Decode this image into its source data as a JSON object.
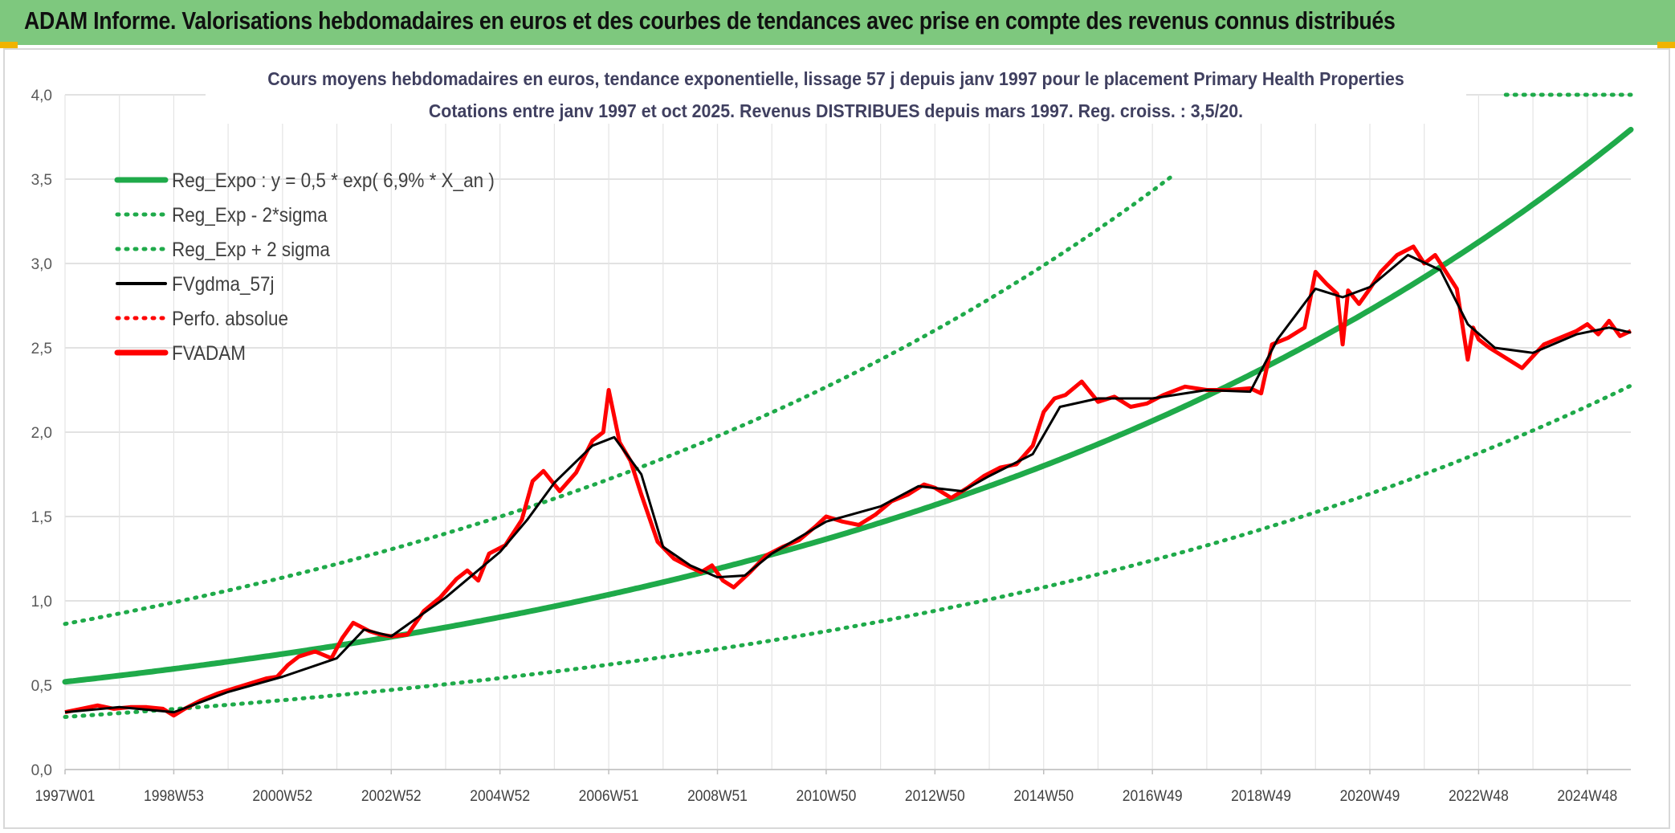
{
  "banner": {
    "title": "ADAM Informe. Valorisations hebdomadaires en euros et des courbes de tendances avec prise en compte des revenus connus distribués"
  },
  "colors": {
    "banner_bg": "#7ec87e",
    "corner_accent": "#f0b400",
    "reg_expo": "#1faa4a",
    "fvgdma": "#000000",
    "fvadam": "#ff0000",
    "perfo": "#ff0000"
  },
  "chart_data": {
    "type": "line",
    "title": "Cours moyens hebdomadaires en euros, tendance exponentielle, lissage 57 j depuis janv 1997 pour le placement Primary Health Properties",
    "subtitle": "Cotations entre janv 1997 et oct 2025. Revenus DISTRIBUES depuis mars 1997. Reg. croiss. : 3,5/20.",
    "xlabel": "",
    "ylabel": "",
    "ylim": [
      0,
      4
    ],
    "xlim": [
      1997.0,
      2025.8
    ],
    "grid": true,
    "legend_position": "top-left",
    "y_ticks": [
      "0,0",
      "0,5",
      "1,0",
      "1,5",
      "2,0",
      "2,5",
      "3,0",
      "3,5",
      "4,0"
    ],
    "x_ticks": [
      {
        "label": "1997W01",
        "x": 1997.0
      },
      {
        "label": "1998W53",
        "x": 1999.0
      },
      {
        "label": "2000W52",
        "x": 2001.0
      },
      {
        "label": "2002W52",
        "x": 2003.0
      },
      {
        "label": "2004W52",
        "x": 2005.0
      },
      {
        "label": "2006W51",
        "x": 2007.0
      },
      {
        "label": "2008W51",
        "x": 2009.0
      },
      {
        "label": "2010W50",
        "x": 2011.0
      },
      {
        "label": "2012W50",
        "x": 2013.0
      },
      {
        "label": "2014W50",
        "x": 2015.0
      },
      {
        "label": "2016W49",
        "x": 2017.0
      },
      {
        "label": "2018W49",
        "x": 2019.0
      },
      {
        "label": "2020W49",
        "x": 2021.0
      },
      {
        "label": "2022W48",
        "x": 2023.0
      },
      {
        "label": "2024W48",
        "x": 2025.0
      }
    ],
    "legend": [
      {
        "label": "Reg_Expo : y = 0,5 * exp( 6,9% *  X_an )",
        "style": "solid-thick",
        "color": "#1faa4a"
      },
      {
        "label": "Reg_Exp - 2*sigma",
        "style": "dotted",
        "color": "#1faa4a"
      },
      {
        "label": "Reg_Exp + 2 sigma",
        "style": "dotted",
        "color": "#1faa4a"
      },
      {
        "label": "FVgdma_57j",
        "style": "solid",
        "color": "#000000"
      },
      {
        "label": "Perfo. absolue",
        "style": "dotted",
        "color": "#ff0000"
      },
      {
        "label": "FVADAM",
        "style": "solid-thick",
        "color": "#ff0000"
      }
    ],
    "trend": {
      "reg_expo": {
        "a": 0.52,
        "rate": 0.069
      },
      "lower_band_factor": 0.6,
      "upper_band_factor": 1.66
    },
    "series": [
      {
        "name": "FVADAM",
        "x": [
          1997.0,
          1997.3,
          1997.6,
          1997.9,
          1998.2,
          1998.5,
          1998.8,
          1999.0,
          1999.2,
          1999.5,
          1999.8,
          2000.1,
          2000.4,
          2000.7,
          2000.9,
          2001.1,
          2001.3,
          2001.6,
          2001.9,
          2002.1,
          2002.3,
          2002.6,
          2002.8,
          2003.0,
          2003.3,
          2003.6,
          2003.9,
          2004.2,
          2004.4,
          2004.6,
          2004.8,
          2005.1,
          2005.4,
          2005.6,
          2005.8,
          2006.1,
          2006.4,
          2006.7,
          2006.9,
          2007.0,
          2007.2,
          2007.4,
          2007.6,
          2007.9,
          2008.2,
          2008.5,
          2008.7,
          2008.9,
          2009.1,
          2009.3,
          2009.6,
          2009.9,
          2010.2,
          2010.5,
          2010.8,
          2011.0,
          2011.3,
          2011.6,
          2011.9,
          2012.2,
          2012.5,
          2012.8,
          2013.0,
          2013.3,
          2013.6,
          2013.9,
          2014.2,
          2014.5,
          2014.8,
          2015.0,
          2015.2,
          2015.4,
          2015.7,
          2016.0,
          2016.3,
          2016.6,
          2016.9,
          2017.2,
          2017.6,
          2018.0,
          2018.4,
          2018.8,
          2019.0,
          2019.2,
          2019.5,
          2019.8,
          2020.0,
          2020.2,
          2020.4,
          2020.5,
          2020.6,
          2020.8,
          2021.0,
          2021.2,
          2021.5,
          2021.8,
          2022.0,
          2022.2,
          2022.4,
          2022.6,
          2022.8,
          2022.9,
          2023.0,
          2023.2,
          2023.5,
          2023.8,
          2024.0,
          2024.2,
          2024.5,
          2024.8,
          2025.0,
          2025.2,
          2025.4,
          2025.6,
          2025.8
        ],
        "values": [
          0.34,
          0.36,
          0.38,
          0.36,
          0.37,
          0.37,
          0.36,
          0.32,
          0.36,
          0.41,
          0.45,
          0.48,
          0.51,
          0.54,
          0.55,
          0.62,
          0.67,
          0.7,
          0.66,
          0.78,
          0.87,
          0.82,
          0.8,
          0.79,
          0.8,
          0.94,
          1.02,
          1.13,
          1.18,
          1.12,
          1.28,
          1.33,
          1.48,
          1.71,
          1.77,
          1.65,
          1.76,
          1.95,
          2.0,
          2.25,
          1.94,
          1.83,
          1.63,
          1.35,
          1.25,
          1.2,
          1.17,
          1.21,
          1.12,
          1.08,
          1.17,
          1.27,
          1.32,
          1.36,
          1.44,
          1.5,
          1.47,
          1.45,
          1.51,
          1.59,
          1.63,
          1.69,
          1.67,
          1.61,
          1.67,
          1.74,
          1.79,
          1.81,
          1.92,
          2.12,
          2.2,
          2.22,
          2.3,
          2.18,
          2.21,
          2.15,
          2.17,
          2.22,
          2.27,
          2.25,
          2.25,
          2.26,
          2.23,
          2.52,
          2.56,
          2.62,
          2.95,
          2.88,
          2.82,
          2.52,
          2.84,
          2.76,
          2.85,
          2.95,
          3.05,
          3.1,
          3.0,
          3.05,
          2.95,
          2.85,
          2.43,
          2.62,
          2.55,
          2.5,
          2.44,
          2.38,
          2.45,
          2.52,
          2.56,
          2.6,
          2.64,
          2.58,
          2.66,
          2.57,
          2.6
        ]
      },
      {
        "name": "FVgdma_57j",
        "x": [
          1997.0,
          1998.0,
          1999.0,
          2000.0,
          2001.0,
          2002.0,
          2002.5,
          2003.0,
          2004.0,
          2005.0,
          2005.5,
          2006.0,
          2006.7,
          2007.1,
          2007.6,
          2008.0,
          2008.5,
          2009.0,
          2009.5,
          2010.0,
          2011.0,
          2012.0,
          2012.7,
          2013.5,
          2014.0,
          2014.8,
          2015.3,
          2016.0,
          2017.0,
          2018.0,
          2018.8,
          2019.3,
          2020.0,
          2020.5,
          2021.0,
          2021.7,
          2022.3,
          2022.8,
          2023.3,
          2024.0,
          2024.8,
          2025.4,
          2025.8
        ],
        "values": [
          0.34,
          0.37,
          0.34,
          0.46,
          0.55,
          0.66,
          0.83,
          0.79,
          1.02,
          1.29,
          1.48,
          1.7,
          1.92,
          1.97,
          1.75,
          1.32,
          1.21,
          1.14,
          1.15,
          1.28,
          1.47,
          1.56,
          1.68,
          1.65,
          1.74,
          1.87,
          2.15,
          2.2,
          2.2,
          2.25,
          2.24,
          2.55,
          2.85,
          2.8,
          2.86,
          3.05,
          2.96,
          2.64,
          2.5,
          2.47,
          2.58,
          2.62,
          2.59
        ]
      }
    ]
  }
}
